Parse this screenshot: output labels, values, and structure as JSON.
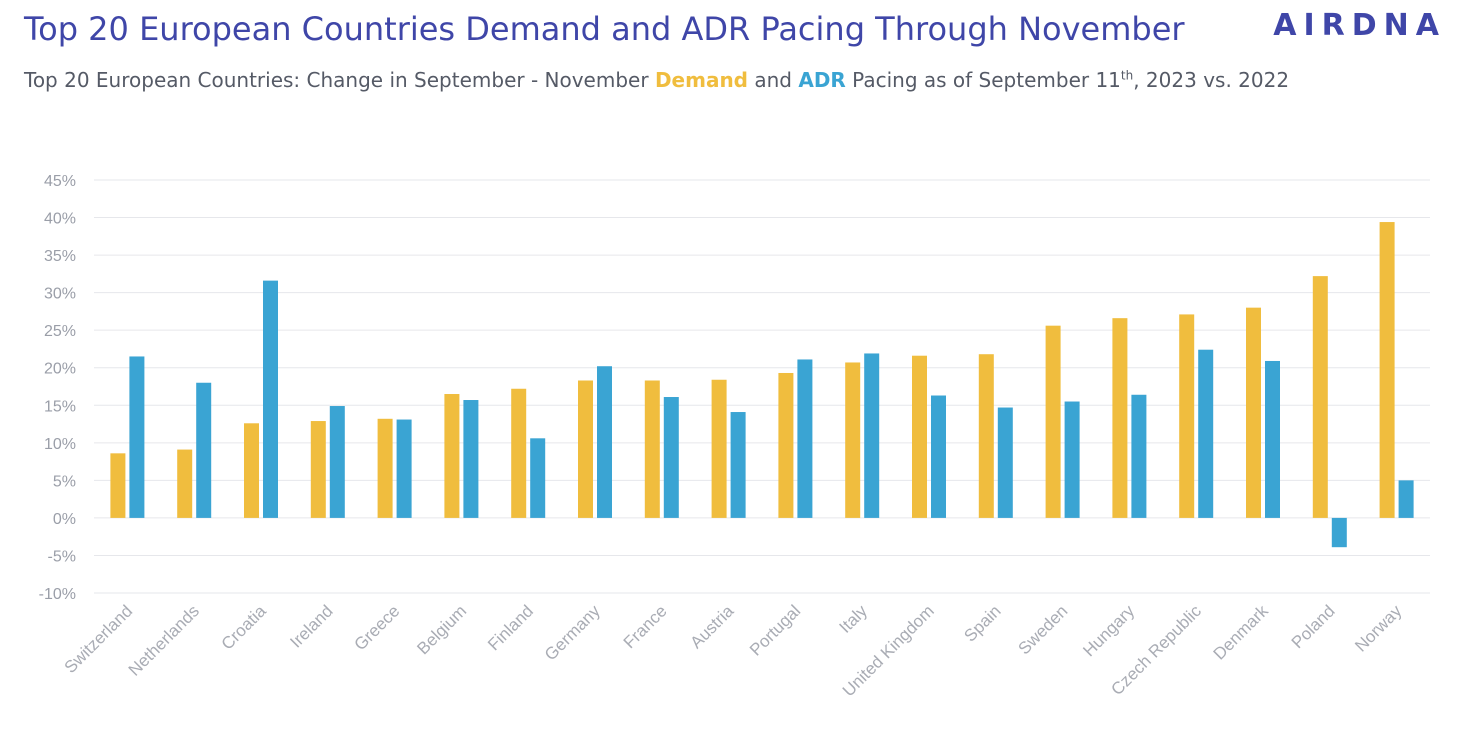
{
  "header": {
    "title": "Top 20 European Countries Demand and ADR Pacing Through November",
    "logo": "AIRDNA",
    "subtitle_pre": "Top 20 European Countries: Change in September - November ",
    "subtitle_demand": "Demand",
    "subtitle_and": " and ",
    "subtitle_adr": "ADR",
    "subtitle_post1": " Pacing as of September 11",
    "subtitle_sup": "th",
    "subtitle_post2": ", 2023 vs. 2022"
  },
  "colors": {
    "demand": "#f0bd3e",
    "adr": "#3aa4d3",
    "title": "#3f46a8"
  },
  "chart_data": {
    "type": "bar",
    "categories": [
      "Switzerland",
      "Netherlands",
      "Croatia",
      "Ireland",
      "Greece",
      "Belgium",
      "Finland",
      "Germany",
      "France",
      "Austria",
      "Portugal",
      "Italy",
      "United Kingdom",
      "Spain",
      "Sweden",
      "Hungary",
      "Czech Republic",
      "Denmark",
      "Poland",
      "Norway"
    ],
    "series": [
      {
        "name": "Demand",
        "color": "#f0bd3e",
        "values": [
          8.6,
          9.1,
          12.6,
          12.9,
          13.2,
          16.5,
          17.2,
          18.3,
          18.3,
          18.4,
          19.3,
          20.7,
          21.6,
          21.8,
          25.6,
          26.6,
          27.1,
          28.0,
          32.2,
          39.4
        ]
      },
      {
        "name": "ADR",
        "color": "#3aa4d3",
        "values": [
          21.5,
          18.0,
          31.6,
          14.9,
          13.1,
          15.7,
          10.6,
          20.2,
          16.1,
          14.1,
          21.1,
          21.9,
          16.3,
          14.7,
          15.5,
          16.4,
          22.4,
          20.9,
          -3.9,
          5.0
        ]
      }
    ],
    "yticks": [
      "45%",
      "40%",
      "35%",
      "30%",
      "25%",
      "20%",
      "15%",
      "10%",
      "5%",
      "0%",
      "-5%",
      "-10%"
    ],
    "ylim": [
      -10,
      45
    ],
    "grid": true,
    "legend": "in subtitle"
  }
}
